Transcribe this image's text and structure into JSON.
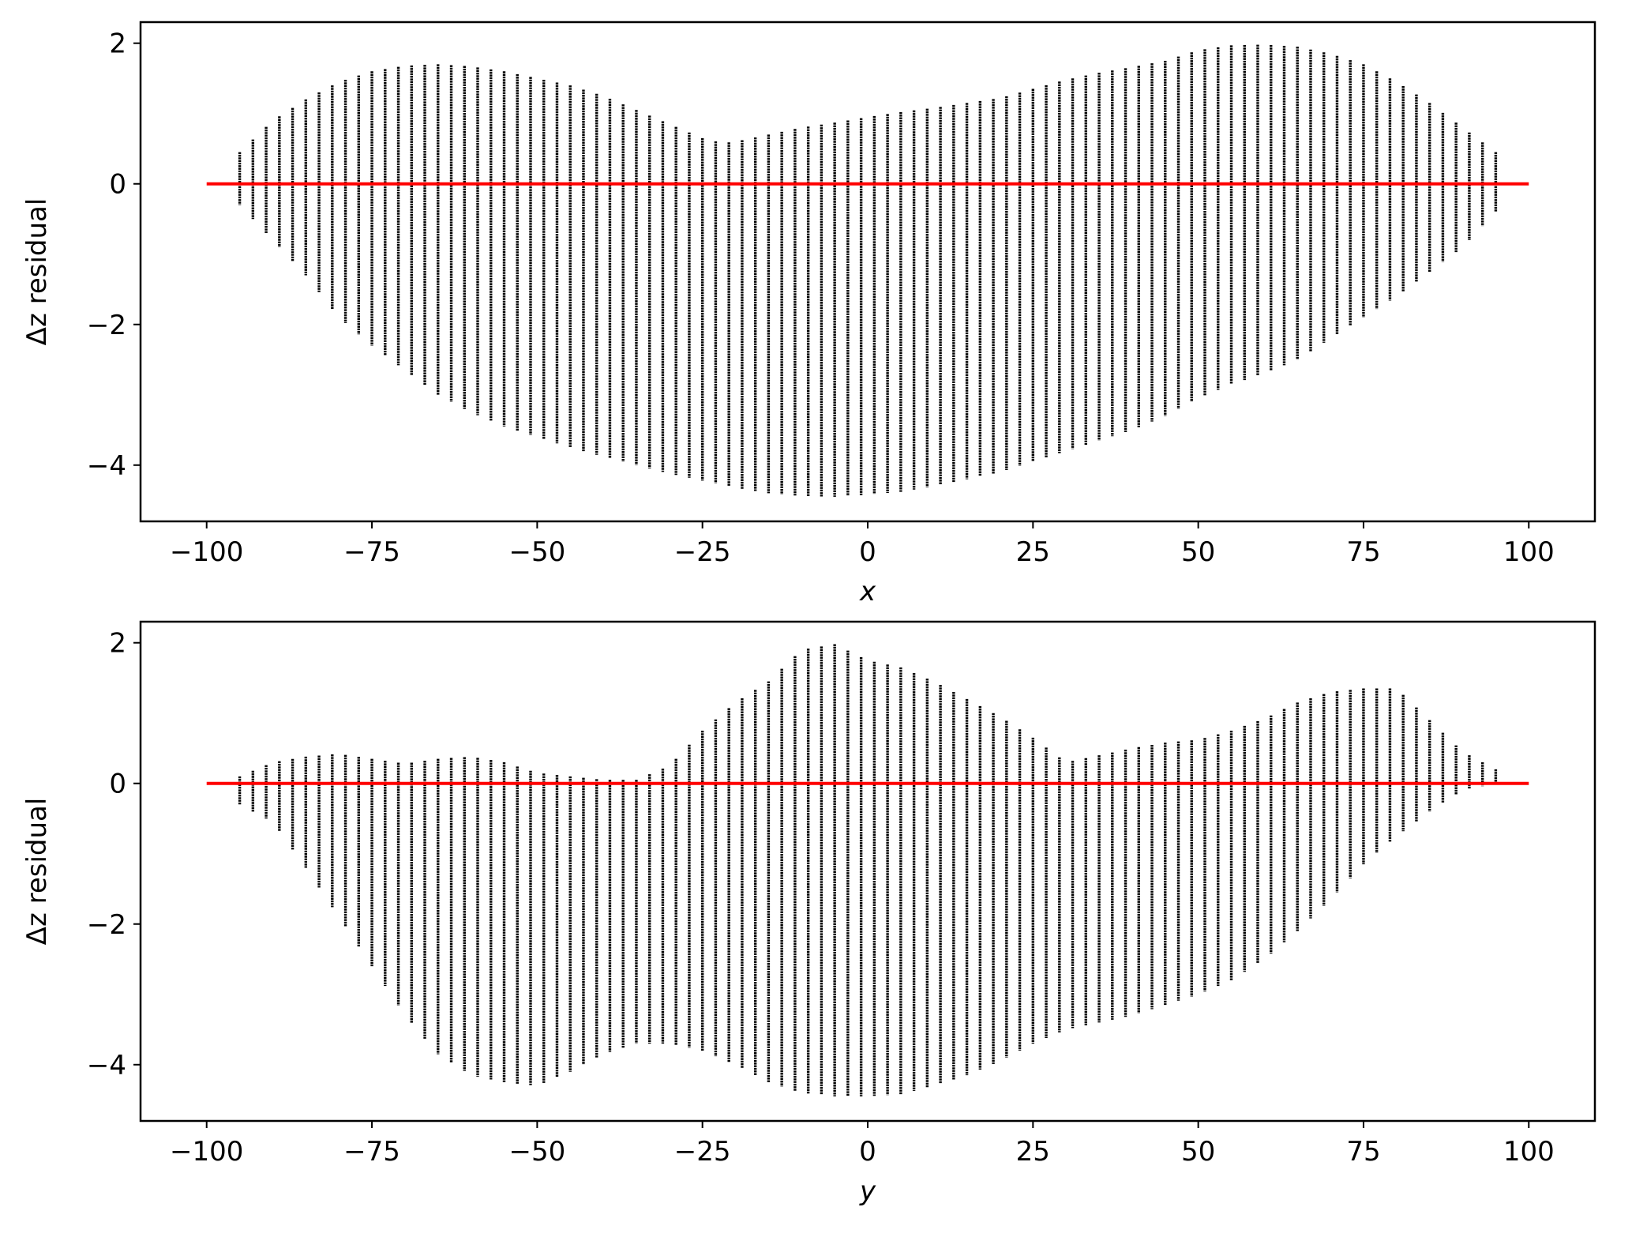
{
  "chart_data": [
    {
      "type": "scatter",
      "xlabel": "x",
      "ylabel": "Δz residual",
      "xlim": [
        -110,
        110
      ],
      "ylim": [
        -4.8,
        2.3
      ],
      "xticks": [
        -100,
        -75,
        -50,
        -25,
        0,
        25,
        50,
        75,
        100
      ],
      "yticks": [
        -4,
        -2,
        0,
        2
      ],
      "xtick_labels": [
        "−100",
        "−75",
        "−50",
        "−25",
        "0",
        "25",
        "50",
        "75",
        "100"
      ],
      "ytick_labels": [
        "−4",
        "−2",
        "0",
        "2"
      ],
      "grid": false,
      "marker_color": "#000000",
      "column_spacing": 2.0,
      "envelope": {
        "x": [
          -95,
          -90,
          -85,
          -80,
          -75,
          -70,
          -65,
          -60,
          -55,
          -50,
          -45,
          -40,
          -35,
          -30,
          -25,
          -22,
          -20,
          -15,
          -10,
          -5,
          0,
          5,
          10,
          15,
          20,
          25,
          30,
          35,
          40,
          45,
          50,
          55,
          60,
          65,
          70,
          75,
          80,
          85,
          90,
          95
        ],
        "upper": [
          0.45,
          0.9,
          1.2,
          1.45,
          1.6,
          1.68,
          1.7,
          1.67,
          1.6,
          1.5,
          1.4,
          1.25,
          1.05,
          0.85,
          0.65,
          0.58,
          0.6,
          0.7,
          0.8,
          0.87,
          0.95,
          1.02,
          1.08,
          1.15,
          1.22,
          1.35,
          1.48,
          1.58,
          1.66,
          1.75,
          1.9,
          1.97,
          1.98,
          1.95,
          1.85,
          1.7,
          1.45,
          1.15,
          0.8,
          0.45
        ],
        "lower": [
          -0.3,
          -0.8,
          -1.3,
          -1.9,
          -2.3,
          -2.65,
          -3.0,
          -3.25,
          -3.45,
          -3.6,
          -3.75,
          -3.88,
          -4.0,
          -4.12,
          -4.22,
          -4.28,
          -4.32,
          -4.4,
          -4.44,
          -4.45,
          -4.42,
          -4.38,
          -4.3,
          -4.2,
          -4.1,
          -3.95,
          -3.8,
          -3.65,
          -3.5,
          -3.3,
          -3.05,
          -2.85,
          -2.7,
          -2.5,
          -2.2,
          -1.9,
          -1.6,
          -1.25,
          -0.9,
          -0.4
        ]
      },
      "reference_line": {
        "x": [
          -100,
          100
        ],
        "y": [
          0,
          0
        ],
        "color": "#ff0000"
      }
    },
    {
      "type": "scatter",
      "xlabel": "y",
      "ylabel": "Δz residual",
      "xlim": [
        -110,
        110
      ],
      "ylim": [
        -4.8,
        2.3
      ],
      "xticks": [
        -100,
        -75,
        -50,
        -25,
        0,
        25,
        50,
        75,
        100
      ],
      "yticks": [
        -4,
        -2,
        0,
        2
      ],
      "xtick_labels": [
        "−100",
        "−75",
        "−50",
        "−25",
        "0",
        "25",
        "50",
        "75",
        "100"
      ],
      "ytick_labels": [
        "−4",
        "−2",
        "0",
        "2"
      ],
      "grid": false,
      "marker_color": "#000000",
      "column_spacing": 2.0,
      "envelope": {
        "x": [
          -95,
          -90,
          -85,
          -80,
          -75,
          -70,
          -65,
          -60,
          -55,
          -50,
          -45,
          -40,
          -35,
          -30,
          -25,
          -20,
          -15,
          -10,
          -5,
          0,
          5,
          10,
          15,
          20,
          25,
          30,
          35,
          40,
          45,
          50,
          55,
          60,
          65,
          70,
          75,
          80,
          85,
          90,
          95
        ],
        "upper": [
          0.1,
          0.3,
          0.38,
          0.42,
          0.35,
          0.28,
          0.35,
          0.38,
          0.3,
          0.15,
          0.1,
          0.05,
          0.05,
          0.25,
          0.75,
          1.15,
          1.45,
          1.9,
          1.98,
          1.75,
          1.65,
          1.45,
          1.2,
          0.95,
          0.65,
          0.3,
          0.4,
          0.5,
          0.58,
          0.62,
          0.75,
          0.92,
          1.15,
          1.3,
          1.35,
          1.35,
          0.9,
          0.45,
          0.2
        ],
        "lower": [
          -0.3,
          -0.55,
          -1.2,
          -1.9,
          -2.6,
          -3.3,
          -3.85,
          -4.15,
          -4.25,
          -4.3,
          -4.1,
          -3.85,
          -3.7,
          -3.7,
          -3.8,
          -4.0,
          -4.25,
          -4.4,
          -4.45,
          -4.45,
          -4.42,
          -4.3,
          -4.15,
          -3.95,
          -3.7,
          -3.5,
          -3.4,
          -3.3,
          -3.15,
          -3.0,
          -2.8,
          -2.5,
          -2.1,
          -1.65,
          -1.15,
          -0.75,
          -0.4,
          -0.1,
          0.0
        ]
      },
      "reference_line": {
        "x": [
          -100,
          100
        ],
        "y": [
          0,
          0
        ],
        "color": "#ff0000"
      }
    }
  ]
}
